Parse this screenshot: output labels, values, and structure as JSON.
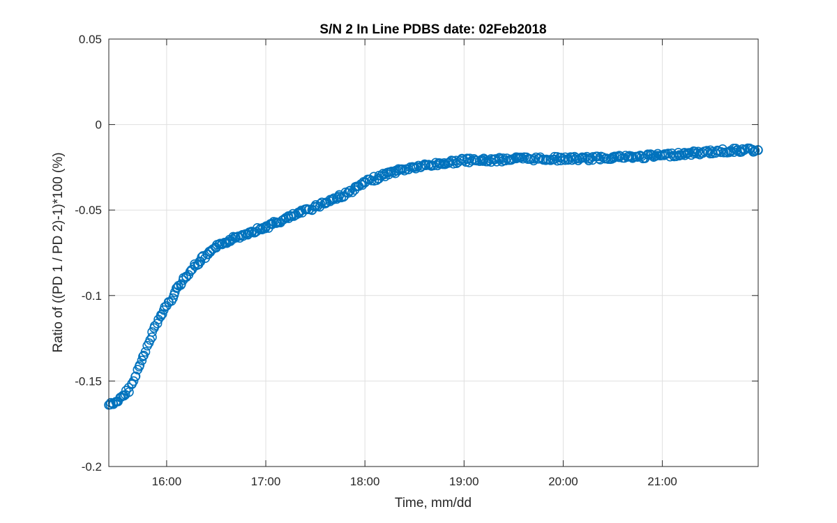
{
  "chart_data": {
    "type": "scatter",
    "title": "S/N 2 In Line PDBS date: 02Feb2018",
    "xlabel": "Time, mm/dd",
    "ylabel": "Ratio of ((PD 1 / PD 2)-1)*100 (%)",
    "xlim": [
      "15:25",
      "21:58"
    ],
    "ylim": [
      -0.2,
      0.05
    ],
    "xticks": [
      "16:00",
      "17:00",
      "18:00",
      "19:00",
      "20:00",
      "21:00"
    ],
    "yticks": [
      "-0.2",
      "-0.15",
      "-0.1",
      "-0.05",
      "0",
      "0.05"
    ],
    "grid": true,
    "marker": "circle",
    "color": "#0072BD",
    "series": [
      {
        "x": [
          "15:25",
          "15:30",
          "15:35",
          "15:40",
          "15:45",
          "15:50",
          "15:55",
          "16:00",
          "16:05",
          "16:10",
          "16:15",
          "16:20",
          "16:25",
          "16:30",
          "16:35",
          "16:40",
          "16:45",
          "16:50",
          "17:00",
          "17:10",
          "17:20",
          "17:30",
          "17:40",
          "17:50",
          "18:00",
          "18:10",
          "18:20",
          "18:30",
          "18:45",
          "19:00",
          "19:15",
          "19:30",
          "19:45",
          "20:00",
          "20:15",
          "20:30",
          "20:45",
          "21:00",
          "21:15",
          "21:30",
          "21:45",
          "21:58"
        ],
        "y": [
          -0.164,
          -0.162,
          -0.158,
          -0.15,
          -0.138,
          -0.126,
          -0.114,
          -0.106,
          -0.098,
          -0.091,
          -0.085,
          -0.08,
          -0.076,
          -0.072,
          -0.069,
          -0.067,
          -0.065,
          -0.063,
          -0.06,
          -0.056,
          -0.052,
          -0.048,
          -0.044,
          -0.04,
          -0.034,
          -0.03,
          -0.027,
          -0.025,
          -0.023,
          -0.021,
          -0.021,
          -0.02,
          -0.02,
          -0.02,
          -0.02,
          -0.019,
          -0.019,
          -0.018,
          -0.017,
          -0.016,
          -0.015,
          -0.015
        ]
      }
    ]
  }
}
